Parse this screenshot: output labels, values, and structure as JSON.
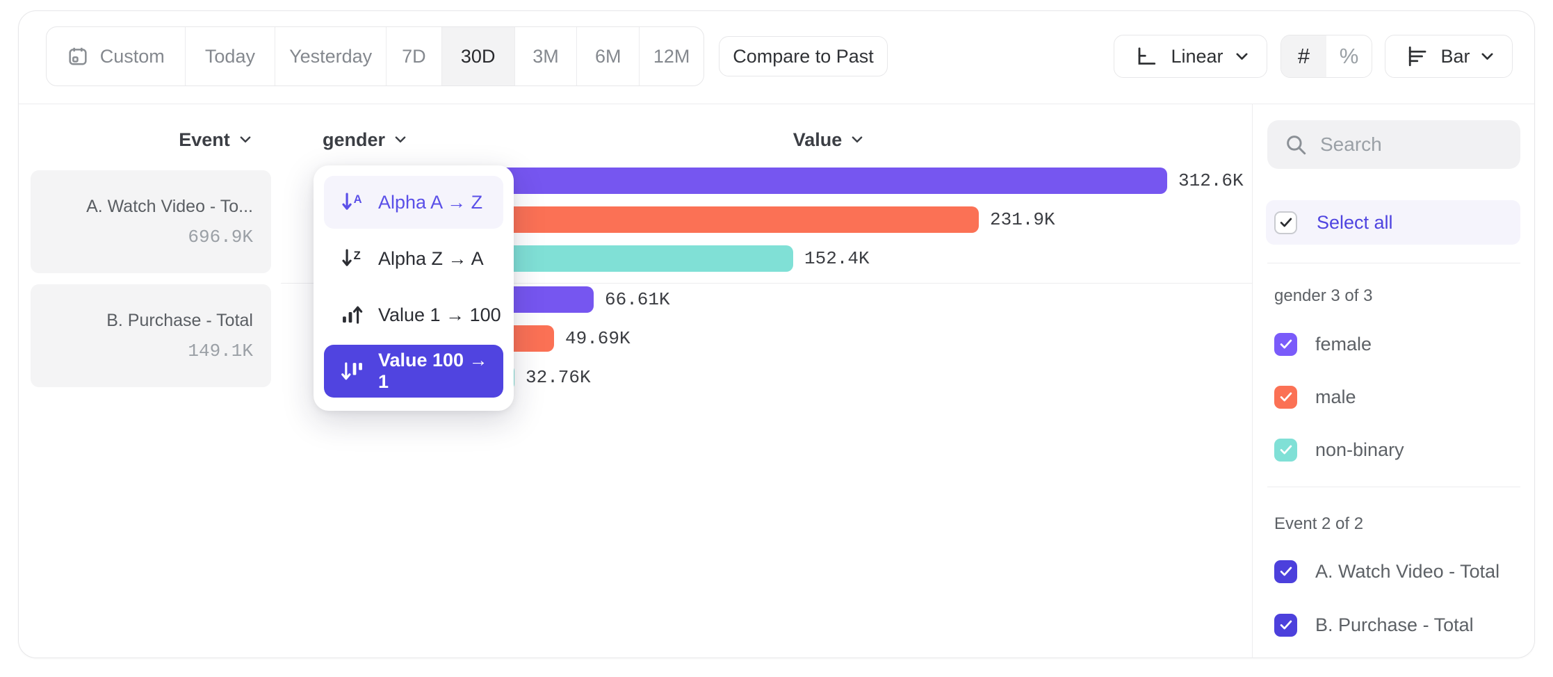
{
  "toolbar": {
    "date_ranges": [
      {
        "label": "Custom"
      },
      {
        "label": "Today"
      },
      {
        "label": "Yesterday"
      },
      {
        "label": "7D"
      },
      {
        "label": "30D"
      },
      {
        "label": "3M"
      },
      {
        "label": "6M"
      },
      {
        "label": "12M"
      }
    ],
    "selected_range": "30D",
    "compare_button": "Compare to Past",
    "scale_selector": {
      "label": "Linear"
    },
    "format_toggle": {
      "number_label": "#",
      "percent_label": "%",
      "selected": "#"
    },
    "chart_type_selector": {
      "label": "Bar"
    }
  },
  "columns": {
    "event": "Event",
    "breakdown": "gender",
    "value": "Value"
  },
  "event_cards": [
    {
      "title": "A. Watch Video - To...",
      "total": "696.9K"
    },
    {
      "title": "B. Purchase - Total",
      "total": "149.1K"
    }
  ],
  "sort_menu": {
    "items": [
      {
        "label": "Alpha A → Z",
        "icon": "sort-alpha-asc-icon",
        "state": "highlighted"
      },
      {
        "label": "Alpha Z → A",
        "icon": "sort-alpha-desc-icon",
        "state": "default"
      },
      {
        "label": "Value 1 → 100",
        "icon": "sort-value-asc-icon",
        "state": "default"
      },
      {
        "label": "Value 100 → 1",
        "icon": "sort-value-desc-icon",
        "state": "selected"
      }
    ]
  },
  "chart_data": {
    "type": "bar",
    "orientation": "horizontal",
    "xlim": [
      0,
      312600
    ],
    "grid": false,
    "title": "",
    "xlabel": "Value",
    "ylabel": "Event / gender",
    "categories": [
      "female",
      "male",
      "non-binary"
    ],
    "series": [
      {
        "name": "A. Watch Video - Total",
        "values": [
          312600,
          231900,
          152400
        ]
      },
      {
        "name": "B. Purchase - Total",
        "values": [
          66610,
          49690,
          32760
        ]
      }
    ],
    "bars": [
      {
        "event": "A. Watch Video - Total",
        "category": "female",
        "value": 312600,
        "label": "312.6K",
        "color": "#7656f0"
      },
      {
        "event": "A. Watch Video - Total",
        "category": "male",
        "value": 231900,
        "label": "231.9K",
        "color": "#fb7155"
      },
      {
        "event": "A. Watch Video - Total",
        "category": "non-binary",
        "value": 152400,
        "label": "152.4K",
        "color": "#80e0d6"
      },
      {
        "event": "B. Purchase - Total",
        "category": "female",
        "value": 66610,
        "label": "66.61K",
        "color": "#7656f0"
      },
      {
        "event": "B. Purchase - Total",
        "category": "male",
        "value": 49690,
        "label": "49.69K",
        "color": "#fb7155"
      },
      {
        "event": "B. Purchase - Total",
        "category": "non-binary",
        "value": 32760,
        "label": "32.76K",
        "color": "#80e0d6"
      }
    ]
  },
  "sidebar": {
    "search_placeholder": "Search",
    "select_all_label": "Select all",
    "sections": [
      {
        "title": "gender 3 of 3",
        "items": [
          {
            "label": "female",
            "color": "#7a5bfa",
            "checked": true
          },
          {
            "label": "male",
            "color": "#fb7155",
            "checked": true
          },
          {
            "label": "non-binary",
            "color": "#80e0d6",
            "checked": true
          }
        ]
      },
      {
        "title": "Event 2 of 2",
        "items": [
          {
            "label": "A. Watch Video - Total",
            "color": "#4c40dc",
            "checked": true
          },
          {
            "label": "B. Purchase - Total",
            "color": "#4c40dc",
            "checked": true
          }
        ]
      }
    ]
  },
  "colors": {
    "accent_indigo": "#5044e0",
    "hover_lavender": "#f5f4fc",
    "bar_purple": "#7656f0",
    "bar_orange": "#fb7155",
    "bar_teal": "#80e0d6"
  }
}
